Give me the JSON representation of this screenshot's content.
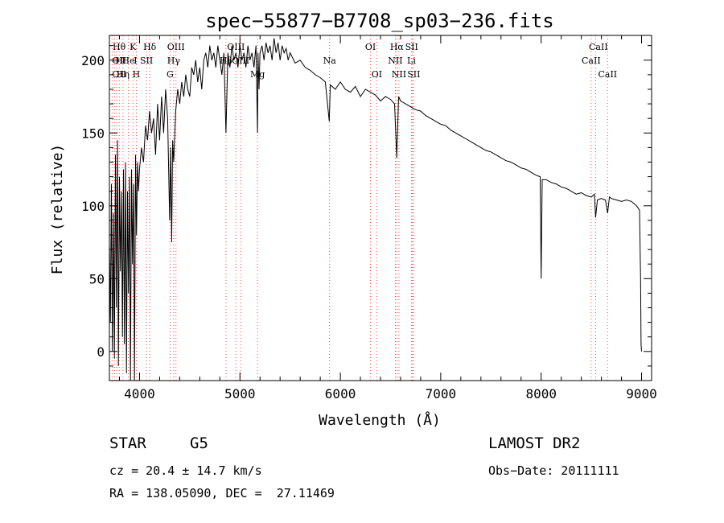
{
  "chart_data": {
    "type": "line",
    "title": "spec−55877−B7708_sp03−236.fits",
    "xlabel": "Wavelength (Å)",
    "ylabel": "Flux (relative)",
    "xlim": [
      3700,
      9100
    ],
    "ylim": [
      -20,
      217
    ],
    "xticks": [
      4000,
      5000,
      6000,
      7000,
      8000,
      9000
    ],
    "yticks": [
      0,
      50,
      100,
      150,
      200
    ],
    "grid": false,
    "series": [
      {
        "x": [
          3700,
          3710,
          3720,
          3730,
          3740,
          3750,
          3760,
          3770,
          3780,
          3790,
          3800,
          3810,
          3820,
          3830,
          3840,
          3850,
          3860,
          3870,
          3880,
          3890,
          3900,
          3910,
          3920,
          3930,
          3940,
          3950,
          3960,
          3970,
          3980,
          3990,
          4000,
          4020,
          4040,
          4060,
          4080,
          4100,
          4120,
          4140,
          4160,
          4180,
          4200,
          4220,
          4240,
          4260,
          4280,
          4300,
          4310,
          4320,
          4330,
          4340,
          4360,
          4380,
          4400,
          4420,
          4440,
          4460,
          4480,
          4500,
          4520,
          4540,
          4560,
          4580,
          4600,
          4620,
          4640,
          4660,
          4680,
          4700,
          4720,
          4740,
          4760,
          4780,
          4800,
          4820,
          4840,
          4861,
          4880,
          4900,
          4920,
          4940,
          4960,
          4980,
          5000,
          5020,
          5040,
          5060,
          5080,
          5100,
          5120,
          5140,
          5160,
          5175,
          5180,
          5190,
          5200,
          5220,
          5240,
          5260,
          5280,
          5300,
          5320,
          5340,
          5360,
          5380,
          5400,
          5420,
          5440,
          5460,
          5480,
          5500,
          5550,
          5600,
          5650,
          5700,
          5750,
          5800,
          5850,
          5890,
          5900,
          5950,
          6000,
          6050,
          6100,
          6150,
          6200,
          6250,
          6300,
          6350,
          6400,
          6450,
          6500,
          6540,
          6562,
          6580,
          6600,
          6650,
          6700,
          6750,
          6800,
          6850,
          6900,
          6950,
          7000,
          7050,
          7100,
          7150,
          7200,
          7250,
          7300,
          7350,
          7400,
          7450,
          7500,
          7550,
          7600,
          7650,
          7700,
          7750,
          7800,
          7850,
          7900,
          7950,
          7990,
          8000,
          8010,
          8050,
          8100,
          8150,
          8200,
          8250,
          8300,
          8350,
          8400,
          8450,
          8500,
          8530,
          8542,
          8560,
          8600,
          8640,
          8662,
          8680,
          8700,
          8750,
          8800,
          8850,
          8900,
          8950,
          8980,
          8990,
          8995,
          9000
        ],
        "values": [
          75,
          20,
          115,
          0,
          95,
          -5,
          135,
          30,
          145,
          -10,
          120,
          55,
          110,
          10,
          125,
          5,
          130,
          -15,
          110,
          40,
          120,
          -20,
          125,
          60,
          115,
          -20,
          135,
          80,
          130,
          110,
          125,
          140,
          130,
          155,
          145,
          165,
          150,
          160,
          135,
          170,
          145,
          175,
          150,
          180,
          160,
          90,
          140,
          75,
          145,
          130,
          165,
          180,
          170,
          185,
          175,
          190,
          180,
          175,
          195,
          190,
          200,
          185,
          195,
          180,
          200,
          205,
          195,
          210,
          200,
          205,
          195,
          210,
          200,
          190,
          205,
          150,
          205,
          195,
          210,
          200,
          205,
          195,
          210,
          200,
          205,
          195,
          210,
          200,
          205,
          195,
          210,
          150,
          205,
          180,
          205,
          210,
          200,
          212,
          205,
          210,
          200,
          215,
          205,
          212,
          200,
          210,
          205,
          208,
          200,
          205,
          198,
          200,
          195,
          193,
          190,
          188,
          185,
          158,
          183,
          180,
          185,
          180,
          178,
          182,
          175,
          180,
          178,
          176,
          172,
          175,
          173,
          170,
          133,
          175,
          172,
          170,
          168,
          166,
          165,
          162,
          160,
          158,
          156,
          155,
          152,
          150,
          148,
          146,
          144,
          142,
          140,
          138,
          137,
          135,
          133,
          131,
          130,
          128,
          126,
          125,
          123,
          121,
          120,
          50,
          118,
          118,
          116,
          115,
          113,
          112,
          110,
          108,
          109,
          107,
          106,
          108,
          92,
          104,
          105,
          104,
          95,
          106,
          105,
          104,
          103,
          104,
          103,
          100,
          97,
          50,
          5,
          0
        ]
      }
    ],
    "line_labels": [
      {
        "text": "Hθ",
        "x": 3797,
        "row": 1,
        "anchor": "center"
      },
      {
        "text": "K",
        "x": 3934,
        "row": 1,
        "anchor": "center"
      },
      {
        "text": "Hδ",
        "x": 4102,
        "row": 1,
        "anchor": "center"
      },
      {
        "text": "OIII",
        "x": 4363,
        "row": 1,
        "anchor": "center"
      },
      {
        "text": "OIII",
        "x": 4960,
        "row": 1,
        "anchor": "center"
      },
      {
        "text": "OI",
        "x": 6300,
        "row": 1,
        "anchor": "center"
      },
      {
        "text": "Hα",
        "x": 6563,
        "row": 1,
        "anchor": "center"
      },
      {
        "text": "SII",
        "x": 6710,
        "row": 1,
        "anchor": "center"
      },
      {
        "text": "CaII",
        "x": 8570,
        "row": 1,
        "anchor": "center"
      },
      {
        "text": "OII",
        "x": 3727,
        "row": 2,
        "anchor": "start"
      },
      {
        "text": "H",
        "x": 3800,
        "row": 2,
        "anchor": "center"
      },
      {
        "text": "He",
        "x": 3889,
        "row": 2,
        "anchor": "center"
      },
      {
        "text": "I",
        "x": 3960,
        "row": 2,
        "anchor": "center"
      },
      {
        "text": "SII",
        "x": 4069,
        "row": 2,
        "anchor": "center"
      },
      {
        "text": "Hγ",
        "x": 4340,
        "row": 2,
        "anchor": "center"
      },
      {
        "text": "Hβ",
        "x": 4861,
        "row": 2,
        "anchor": "center"
      },
      {
        "text": "OIII",
        "x": 5007,
        "row": 2,
        "anchor": "center"
      },
      {
        "text": "Na",
        "x": 5893,
        "row": 2,
        "anchor": "center"
      },
      {
        "text": "NII",
        "x": 6548,
        "row": 2,
        "anchor": "center"
      },
      {
        "text": "Li",
        "x": 6708,
        "row": 2,
        "anchor": "center"
      },
      {
        "text": "CaII",
        "x": 8498,
        "row": 2,
        "anchor": "center"
      },
      {
        "text": "OII",
        "x": 3727,
        "row": 3,
        "anchor": "start"
      },
      {
        "text": "Hη",
        "x": 3835,
        "row": 3,
        "anchor": "center"
      },
      {
        "text": "H",
        "x": 3968,
        "row": 3,
        "anchor": "center"
      },
      {
        "text": "G",
        "x": 4304,
        "row": 3,
        "anchor": "center"
      },
      {
        "text": "Mg",
        "x": 5175,
        "row": 3,
        "anchor": "center"
      },
      {
        "text": "OI",
        "x": 6363,
        "row": 3,
        "anchor": "center"
      },
      {
        "text": "NII",
        "x": 6584,
        "row": 3,
        "anchor": "center"
      },
      {
        "text": "SII",
        "x": 6731,
        "row": 3,
        "anchor": "center"
      },
      {
        "text": "CaII",
        "x": 8662,
        "row": 3,
        "anchor": "center"
      }
    ],
    "marker_lines": [
      3727,
      3750,
      3771,
      3798,
      3835,
      3889,
      3934,
      3968,
      4069,
      4102,
      4304,
      4340,
      4363,
      4861,
      4959,
      5007,
      5175,
      5893,
      6300,
      6363,
      6548,
      6563,
      6584,
      6708,
      6717,
      6731,
      8498,
      8542,
      8662
    ],
    "colors": {
      "line": "#000000",
      "markers": "#ff0000",
      "text": "#000000"
    }
  },
  "info": {
    "object_class": "STAR",
    "subclass": "G5",
    "survey": "LAMOST DR2",
    "cz": "cz = 20.4 ± 14.7 km/s",
    "obs_date": "Obs−Date: 20111111",
    "coords": "RA = 138.05090, DEC =  27.11469"
  }
}
